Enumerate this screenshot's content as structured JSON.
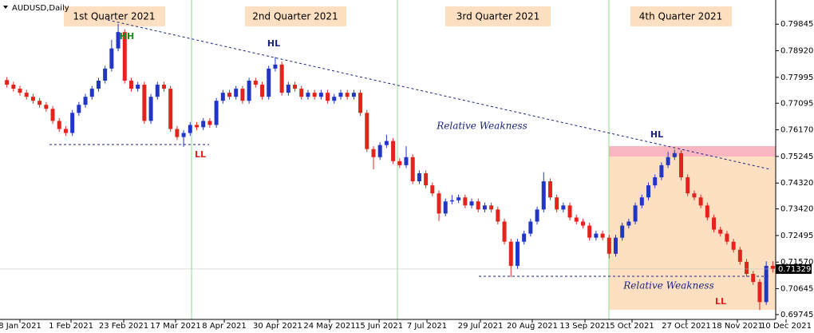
{
  "chart_data": {
    "type": "candlestick",
    "title": "AUDUSD,Daily",
    "up_color": "#2136c4",
    "down_color": "#e3241d",
    "ylim": [
      0.69577,
      0.80546
    ],
    "xlim": [
      -1.05,
      117.2
    ],
    "yticks": [
      0.79845,
      {
        "value": 0.7892,
        "label": "0.78920"
      },
      0.77995,
      0.77095,
      {
        "value": 0.7617,
        "label": "0.76170"
      },
      0.75245,
      {
        "value": 0.7432,
        "label": "0.74320"
      },
      {
        "value": 0.7342,
        "label": "0.73420"
      },
      0.72495,
      {
        "value": 0.7157,
        "label": "0.71570"
      },
      0.70645,
      0.69745
    ],
    "last_price": 0.71329,
    "xticks": [
      {
        "value": 2.0,
        "label": "8 Jan 2021"
      },
      {
        "value": 9.8,
        "label": "1 Feb 2021"
      },
      {
        "value": 17.85,
        "label": "23 Feb 2021"
      },
      {
        "value": 25.77,
        "label": "17 Mar 2021"
      },
      {
        "value": 33.21,
        "label": "8 Apr 2021"
      },
      {
        "value": 41.37,
        "label": "30 Apr 2021"
      },
      {
        "value": 49.3,
        "label": "24 May 2021"
      },
      {
        "value": 56.86,
        "label": "15 Jun 2021"
      },
      {
        "value": 64.17,
        "label": "7 Jul 2021"
      },
      {
        "value": 72.34,
        "label": "29 Jul 2021"
      },
      {
        "value": 80.26,
        "label": "20 Aug 2021"
      },
      {
        "value": 88.31,
        "label": "13 Sep 2021"
      },
      {
        "value": 95.5,
        "label": "5 Oct 2021"
      },
      {
        "value": 103.79,
        "label": "27 Oct 2021"
      },
      {
        "value": 111.59,
        "label": "18 Nov 2021"
      },
      {
        "value": 119.03,
        "label": "10 Dec 2021"
      }
    ],
    "quarters": [
      "1st Quarter 2021",
      "2nd Quarter 2021",
      "3rd Quarter 2021",
      "4th Quarter 2021"
    ],
    "annotations": [
      "HH",
      "HL",
      "LL",
      "HL",
      "LL",
      "Relative Weakness",
      "Relative Weakness"
    ],
    "candles": [
      [
        0.779,
        0.78,
        0.7764,
        0.7774
      ],
      [
        0.7774,
        0.7784,
        0.775,
        0.776
      ],
      [
        0.776,
        0.777,
        0.7736,
        0.7746
      ],
      [
        0.7746,
        0.7756,
        0.7722,
        0.7732
      ],
      [
        0.7732,
        0.7742,
        0.7708,
        0.7718
      ],
      [
        0.7718,
        0.7728,
        0.7694,
        0.7704
      ],
      [
        0.7704,
        0.7714,
        0.768,
        0.769
      ],
      [
        0.769,
        0.77,
        0.7638,
        0.7648
      ],
      [
        0.7648,
        0.7658,
        0.761,
        0.762
      ],
      [
        0.762,
        0.763,
        0.7596,
        0.7606
      ],
      [
        0.7606,
        0.7686,
        0.7596,
        0.7676
      ],
      [
        0.7676,
        0.7714,
        0.7666,
        0.7704
      ],
      [
        0.7704,
        0.7742,
        0.7694,
        0.7732
      ],
      [
        0.7732,
        0.777,
        0.7722,
        0.776
      ],
      [
        0.776,
        0.7798,
        0.775,
        0.7788
      ],
      [
        0.7788,
        0.784,
        0.7778,
        0.783
      ],
      [
        0.783,
        0.793,
        0.782,
        0.79
      ],
      [
        0.79,
        0.7985,
        0.789,
        0.7957
      ],
      [
        0.7957,
        0.7967,
        0.7778,
        0.7788
      ],
      [
        0.7788,
        0.7798,
        0.775,
        0.776
      ],
      [
        0.776,
        0.7784,
        0.775,
        0.7774
      ],
      [
        0.7774,
        0.7784,
        0.7638,
        0.7648
      ],
      [
        0.7648,
        0.7742,
        0.7638,
        0.7732
      ],
      [
        0.7732,
        0.7784,
        0.7722,
        0.7774
      ],
      [
        0.7774,
        0.7784,
        0.775,
        0.776
      ],
      [
        0.776,
        0.777,
        0.761,
        0.762
      ],
      [
        0.762,
        0.763,
        0.7582,
        0.7592
      ],
      [
        0.7592,
        0.7616,
        0.7558,
        0.7606
      ],
      [
        0.7606,
        0.7644,
        0.7596,
        0.7634
      ],
      [
        0.7634,
        0.7644,
        0.7616,
        0.7626
      ],
      [
        0.7626,
        0.7658,
        0.7616,
        0.7648
      ],
      [
        0.7648,
        0.7658,
        0.7624,
        0.7634
      ],
      [
        0.7634,
        0.7728,
        0.7624,
        0.7718
      ],
      [
        0.7718,
        0.7756,
        0.7708,
        0.7746
      ],
      [
        0.7746,
        0.7756,
        0.7722,
        0.7732
      ],
      [
        0.7732,
        0.777,
        0.7722,
        0.776
      ],
      [
        0.776,
        0.777,
        0.7708,
        0.7718
      ],
      [
        0.7718,
        0.7798,
        0.7708,
        0.7788
      ],
      [
        0.7788,
        0.7798,
        0.7764,
        0.7774
      ],
      [
        0.7774,
        0.7784,
        0.7722,
        0.7732
      ],
      [
        0.7732,
        0.784,
        0.7722,
        0.783
      ],
      [
        0.783,
        0.787,
        0.782,
        0.7844
      ],
      [
        0.7844,
        0.7854,
        0.7736,
        0.7746
      ],
      [
        0.7746,
        0.7784,
        0.7736,
        0.7774
      ],
      [
        0.7774,
        0.7784,
        0.775,
        0.776
      ],
      [
        0.776,
        0.777,
        0.7722,
        0.7732
      ],
      [
        0.7732,
        0.7756,
        0.7722,
        0.7746
      ],
      [
        0.7746,
        0.7756,
        0.7722,
        0.7732
      ],
      [
        0.7732,
        0.7756,
        0.7722,
        0.7746
      ],
      [
        0.7746,
        0.7756,
        0.7708,
        0.7718
      ],
      [
        0.7718,
        0.7742,
        0.7708,
        0.7732
      ],
      [
        0.7732,
        0.7756,
        0.7722,
        0.7746
      ],
      [
        0.7746,
        0.7756,
        0.7722,
        0.7732
      ],
      [
        0.7732,
        0.7756,
        0.7722,
        0.7746
      ],
      [
        0.7746,
        0.7756,
        0.7666,
        0.7676
      ],
      [
        0.7676,
        0.7686,
        0.754,
        0.755
      ],
      [
        0.755,
        0.756,
        0.748,
        0.7522
      ],
      [
        0.7522,
        0.7574,
        0.7512,
        0.7564
      ],
      [
        0.7564,
        0.76,
        0.7554,
        0.7578
      ],
      [
        0.7578,
        0.7588,
        0.7498,
        0.7508
      ],
      [
        0.7508,
        0.7518,
        0.7484,
        0.7494
      ],
      [
        0.7494,
        0.756,
        0.7484,
        0.7522
      ],
      [
        0.7522,
        0.7532,
        0.7428,
        0.7438
      ],
      [
        0.7438,
        0.7476,
        0.7428,
        0.7466
      ],
      [
        0.7466,
        0.7476,
        0.7414,
        0.7424
      ],
      [
        0.7424,
        0.7434,
        0.7386,
        0.7396
      ],
      [
        0.7396,
        0.7406,
        0.73,
        0.7326
      ],
      [
        0.7326,
        0.7378,
        0.7316,
        0.7368
      ],
      [
        0.7368,
        0.739,
        0.7358,
        0.7372
      ],
      [
        0.7372,
        0.7392,
        0.7362,
        0.7382
      ],
      [
        0.7382,
        0.7392,
        0.7344,
        0.7354
      ],
      [
        0.7354,
        0.7378,
        0.7344,
        0.7368
      ],
      [
        0.7368,
        0.7378,
        0.733,
        0.734
      ],
      [
        0.734,
        0.7364,
        0.733,
        0.7354
      ],
      [
        0.7354,
        0.7364,
        0.733,
        0.734
      ],
      [
        0.734,
        0.735,
        0.7288,
        0.7298
      ],
      [
        0.7298,
        0.7308,
        0.7218,
        0.7228
      ],
      [
        0.7228,
        0.7238,
        0.7105,
        0.7144
      ],
      [
        0.7144,
        0.7238,
        0.7134,
        0.7228
      ],
      [
        0.7228,
        0.7266,
        0.7218,
        0.7256
      ],
      [
        0.7256,
        0.7308,
        0.7246,
        0.7298
      ],
      [
        0.7298,
        0.735,
        0.7288,
        0.734
      ],
      [
        0.734,
        0.747,
        0.733,
        0.7438
      ],
      [
        0.7438,
        0.7448,
        0.7372,
        0.7382
      ],
      [
        0.7382,
        0.7392,
        0.733,
        0.734
      ],
      [
        0.734,
        0.7364,
        0.733,
        0.7354
      ],
      [
        0.7354,
        0.7364,
        0.7302,
        0.7312
      ],
      [
        0.7312,
        0.7322,
        0.7288,
        0.7298
      ],
      [
        0.7298,
        0.7308,
        0.7274,
        0.7284
      ],
      [
        0.7284,
        0.7294,
        0.7232,
        0.7242
      ],
      [
        0.7242,
        0.7266,
        0.7232,
        0.7256
      ],
      [
        0.7256,
        0.7266,
        0.7232,
        0.7242
      ],
      [
        0.7242,
        0.7252,
        0.717,
        0.7186
      ],
      [
        0.7186,
        0.7252,
        0.7176,
        0.7242
      ],
      [
        0.7242,
        0.7294,
        0.7232,
        0.7284
      ],
      [
        0.7284,
        0.7308,
        0.7274,
        0.7298
      ],
      [
        0.7298,
        0.7364,
        0.7288,
        0.7354
      ],
      [
        0.7354,
        0.7392,
        0.7344,
        0.7382
      ],
      [
        0.7382,
        0.7434,
        0.7372,
        0.7424
      ],
      [
        0.7424,
        0.7462,
        0.7414,
        0.7452
      ],
      [
        0.7452,
        0.7504,
        0.7442,
        0.7494
      ],
      [
        0.7494,
        0.754,
        0.7484,
        0.7522
      ],
      [
        0.7522,
        0.7548,
        0.7512,
        0.7536
      ],
      [
        0.7536,
        0.7546,
        0.7442,
        0.7452
      ],
      [
        0.7452,
        0.7462,
        0.7386,
        0.7396
      ],
      [
        0.7396,
        0.7406,
        0.7372,
        0.7382
      ],
      [
        0.7382,
        0.7392,
        0.7344,
        0.7354
      ],
      [
        0.7354,
        0.7364,
        0.7302,
        0.7312
      ],
      [
        0.7312,
        0.7322,
        0.726,
        0.727
      ],
      [
        0.727,
        0.728,
        0.7246,
        0.7256
      ],
      [
        0.7256,
        0.7266,
        0.7218,
        0.7228
      ],
      [
        0.7228,
        0.7238,
        0.719,
        0.72
      ],
      [
        0.72,
        0.721,
        0.7148,
        0.7158
      ],
      [
        0.7158,
        0.7168,
        0.7106,
        0.7116
      ],
      [
        0.7116,
        0.7126,
        0.7078,
        0.7088
      ],
      [
        0.7088,
        0.7098,
        0.699,
        0.7018
      ],
      [
        0.7018,
        0.716,
        0.7008,
        0.7144
      ],
      [
        0.7144,
        0.716,
        0.712,
        0.7133
      ]
    ]
  }
}
